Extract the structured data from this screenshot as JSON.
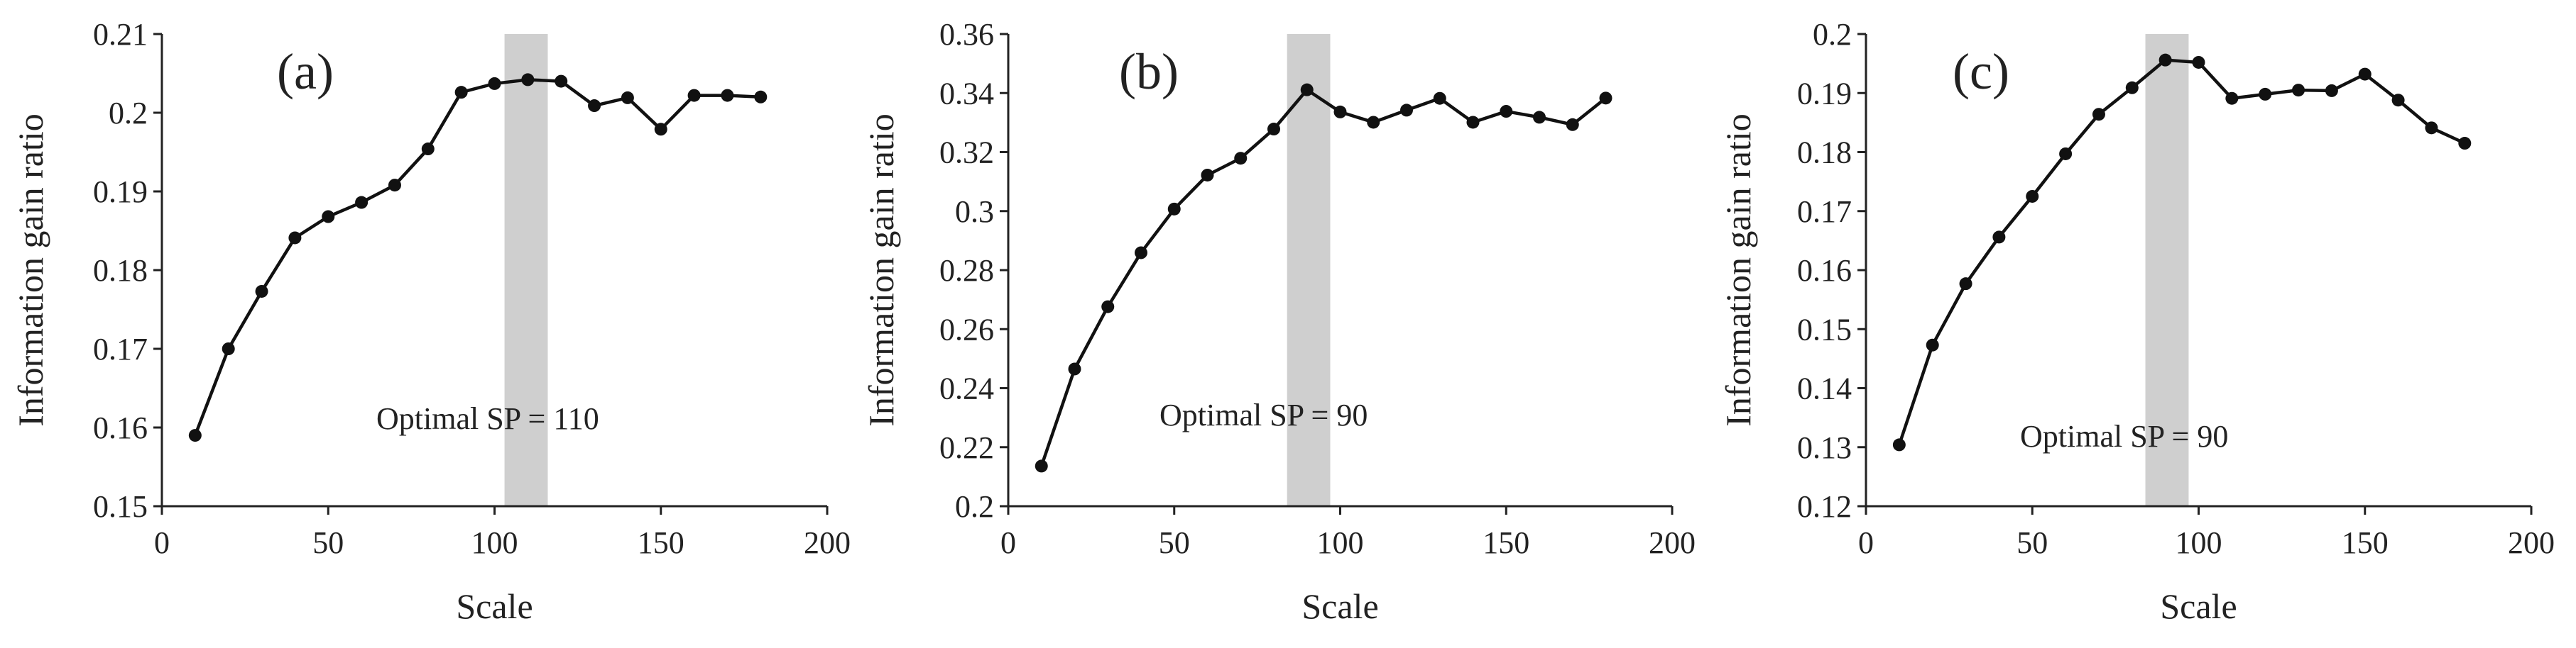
{
  "chart_data": [
    {
      "type": "line",
      "panel_label": "(a)",
      "annotation": "Optimal SP = 110",
      "xlabel": "Scale",
      "ylabel": "Information gain ratio",
      "xlim": [
        0,
        200
      ],
      "ylim": [
        0.15,
        0.21
      ],
      "xticks": [
        0,
        50,
        100,
        150,
        200
      ],
      "xtick_labels": [
        "0",
        "50",
        "100",
        "150",
        "200"
      ],
      "yticks": [
        0.15,
        0.16,
        0.17,
        0.18,
        0.19,
        0.2,
        0.21
      ],
      "ytick_labels": [
        "0.15",
        "0.16",
        "0.17",
        "0.18",
        "0.19",
        "0.2",
        "0.21"
      ],
      "highlight_x": [
        103,
        116
      ],
      "x": [
        10,
        20,
        30,
        40,
        50,
        60,
        70,
        80,
        90,
        100,
        110,
        120,
        130,
        140,
        150,
        160,
        170,
        180
      ],
      "values": [
        0.159,
        0.17,
        0.1773,
        0.1841,
        0.1868,
        0.1886,
        0.1908,
        0.1954,
        0.2026,
        0.2037,
        0.2042,
        0.204,
        0.2009,
        0.2019,
        0.1979,
        0.2022,
        0.2022,
        0.202
      ],
      "grid": false,
      "legend": "none"
    },
    {
      "type": "line",
      "panel_label": "(b)",
      "annotation": "Optimal SP = 90",
      "xlabel": "Scale",
      "ylabel": "Information gain ratio",
      "xlim": [
        0,
        200
      ],
      "ylim": [
        0.2,
        0.36
      ],
      "xticks": [
        0,
        50,
        100,
        150,
        200
      ],
      "xtick_labels": [
        "0",
        "50",
        "100",
        "150",
        "200"
      ],
      "yticks": [
        0.2,
        0.22,
        0.24,
        0.26,
        0.28,
        0.3,
        0.32,
        0.34,
        0.36
      ],
      "ytick_labels": [
        "0.2",
        "0.22",
        "0.24",
        "0.26",
        "0.28",
        "0.3",
        "0.32",
        "0.34",
        "0.36"
      ],
      "highlight_x": [
        84,
        97
      ],
      "x": [
        10,
        20,
        30,
        40,
        50,
        60,
        70,
        80,
        90,
        100,
        110,
        120,
        130,
        140,
        150,
        160,
        170,
        180
      ],
      "values": [
        0.2136,
        0.2465,
        0.2676,
        0.2859,
        0.3007,
        0.3122,
        0.3179,
        0.3278,
        0.3411,
        0.3336,
        0.3301,
        0.3342,
        0.3382,
        0.3301,
        0.3338,
        0.3318,
        0.3293,
        0.3383
      ],
      "grid": false,
      "legend": "none"
    },
    {
      "type": "line",
      "panel_label": "(c)",
      "annotation": "Optimal SP = 90",
      "xlabel": "Scale",
      "ylabel": "Information gain ratio",
      "xlim": [
        0,
        200
      ],
      "ylim": [
        0.12,
        0.2
      ],
      "xticks": [
        0,
        50,
        100,
        150,
        200
      ],
      "xtick_labels": [
        "0",
        "50",
        "100",
        "150",
        "200"
      ],
      "yticks": [
        0.12,
        0.13,
        0.14,
        0.15,
        0.16,
        0.17,
        0.18,
        0.19,
        0.2
      ],
      "ytick_labels": [
        "0.12",
        "0.13",
        "0.14",
        "0.15",
        "0.16",
        "0.17",
        "0.18",
        "0.19",
        "0.2"
      ],
      "highlight_x": [
        84,
        97
      ],
      "x": [
        10,
        20,
        30,
        40,
        50,
        60,
        70,
        80,
        90,
        100,
        110,
        120,
        130,
        140,
        150,
        160,
        170,
        180
      ],
      "values": [
        0.1304,
        0.1473,
        0.1577,
        0.1656,
        0.1725,
        0.1797,
        0.1864,
        0.1909,
        0.1956,
        0.1952,
        0.1891,
        0.1898,
        0.1905,
        0.1904,
        0.1932,
        0.1888,
        0.1841,
        0.1815
      ],
      "grid": false,
      "legend": "none"
    }
  ]
}
